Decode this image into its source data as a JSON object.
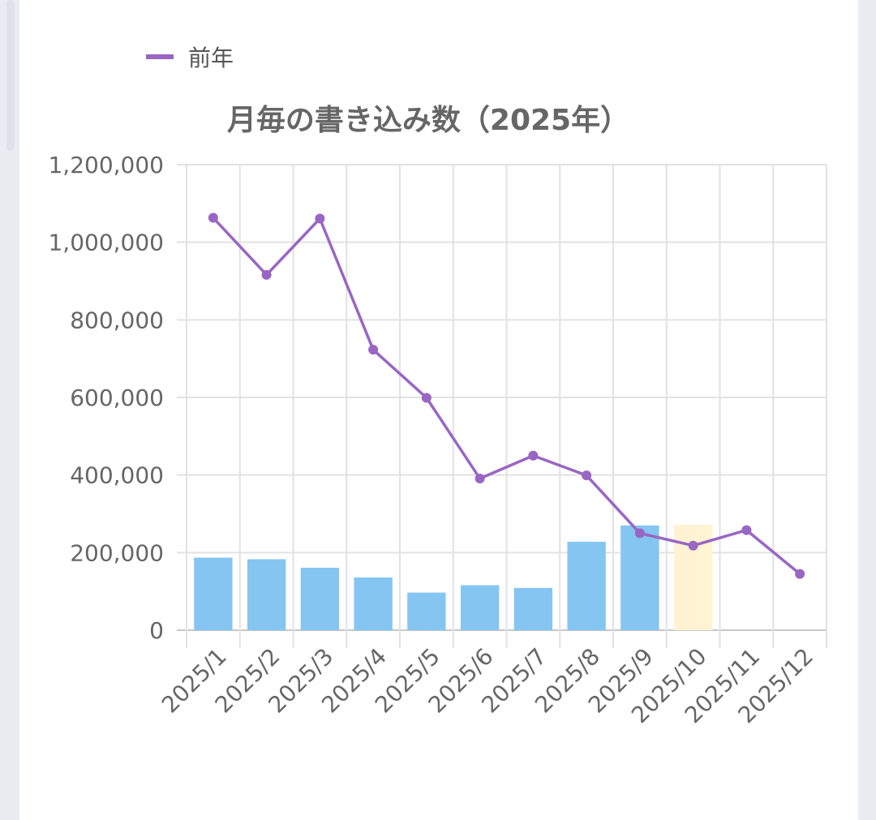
{
  "chart_data": {
    "type": "bar",
    "title": "月毎の書き込み数（2025年）",
    "categories": [
      "2025/1",
      "2025/2",
      "2025/3",
      "2025/4",
      "2025/5",
      "2025/6",
      "2025/7",
      "2025/8",
      "2025/9",
      "2025/10",
      "2025/11",
      "2025/12"
    ],
    "series": [
      {
        "name": "",
        "type": "bar",
        "values": [
          187000,
          183000,
          161000,
          136000,
          97000,
          116000,
          109000,
          228000,
          270000,
          null,
          null,
          null
        ],
        "color": "#85c5f1"
      },
      {
        "name": "",
        "type": "bar",
        "values": [
          null,
          null,
          null,
          null,
          null,
          null,
          null,
          null,
          null,
          272000,
          null,
          null
        ],
        "color": "#fff3d3"
      },
      {
        "name": "前年",
        "type": "line",
        "values": [
          1063000,
          916000,
          1061000,
          723000,
          599000,
          391000,
          450000,
          399000,
          250000,
          218000,
          258000,
          145000
        ],
        "color": "#9966c4"
      }
    ],
    "yticks": [
      "0",
      "200,000",
      "400,000",
      "600,000",
      "800,000",
      "1,000,000",
      "1,200,000"
    ],
    "ylim": [
      0,
      1200000
    ],
    "grid": true,
    "legend_position": "top-left"
  }
}
